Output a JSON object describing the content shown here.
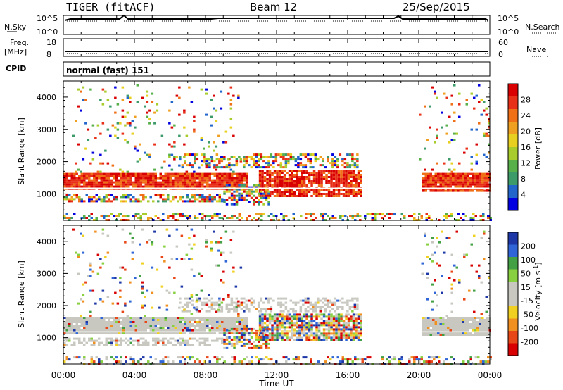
{
  "header": {
    "station": "TIGER (fitACF)",
    "beam": "Beam 12",
    "date": "25/Sep/2015"
  },
  "top_panels": {
    "nsky_label": "N.Sky",
    "nsky_ticks": [
      "10^5",
      "10^0"
    ],
    "nsearch_label": "N.Search",
    "nsearch_ticks": [
      "10^5",
      "10^0"
    ],
    "freq_label": "Freq.",
    "freq_unit": "[MHz]",
    "freq_ticks": [
      "18",
      "8"
    ],
    "nave_label": "Nave",
    "nave_ticks": [
      "60",
      "0"
    ],
    "cpid_label": "CPID",
    "cpid_value": "normal (fast) 151"
  },
  "colors": {
    "power_scale": [
      "#0000e0",
      "#2266cc",
      "#3d9b6a",
      "#58b04a",
      "#a8cc2c",
      "#e8d020",
      "#f0a020",
      "#f07018",
      "#e83018",
      "#d80000"
    ],
    "velocity_scale": [
      "#1d38a6",
      "#2f65d6",
      "#44a044",
      "#88d040",
      "#c8c8c0",
      "#c8c8c0",
      "#f0d020",
      "#f09020",
      "#e84818",
      "#d80000"
    ]
  },
  "chart_data": [
    {
      "type": "heatmap",
      "name": "power",
      "ylabel": "Slant Range [km]",
      "yticks": [
        "4000",
        "3000",
        "2000",
        "1000"
      ],
      "ylim": [
        180,
        4500
      ],
      "xlim": [
        "00:00",
        "24:00"
      ],
      "colorbar_label": "Power [dB]",
      "colorbar_ticks": [
        "28",
        "24",
        "20",
        "16",
        "12",
        "8",
        "4"
      ],
      "colorbar_range": [
        0,
        30
      ]
    },
    {
      "type": "heatmap",
      "name": "velocity",
      "ylabel": "Slant Range [km]",
      "yticks": [
        "4000",
        "3000",
        "2000",
        "1000"
      ],
      "ylim": [
        180,
        4500
      ],
      "xlim": [
        "00:00",
        "24:00"
      ],
      "colorbar_label": "Velocity [m s",
      "colorbar_label_sup": "-1",
      "colorbar_label_end": "]",
      "colorbar_ticks": [
        "200",
        "100",
        "50",
        "15",
        "-15",
        "-50",
        "-100",
        "-200"
      ]
    }
  ],
  "xaxis": {
    "ticks": [
      "00:00",
      "04:00",
      "08:00",
      "12:00",
      "16:00",
      "20:00",
      "00:00"
    ],
    "label": "Time UT"
  }
}
